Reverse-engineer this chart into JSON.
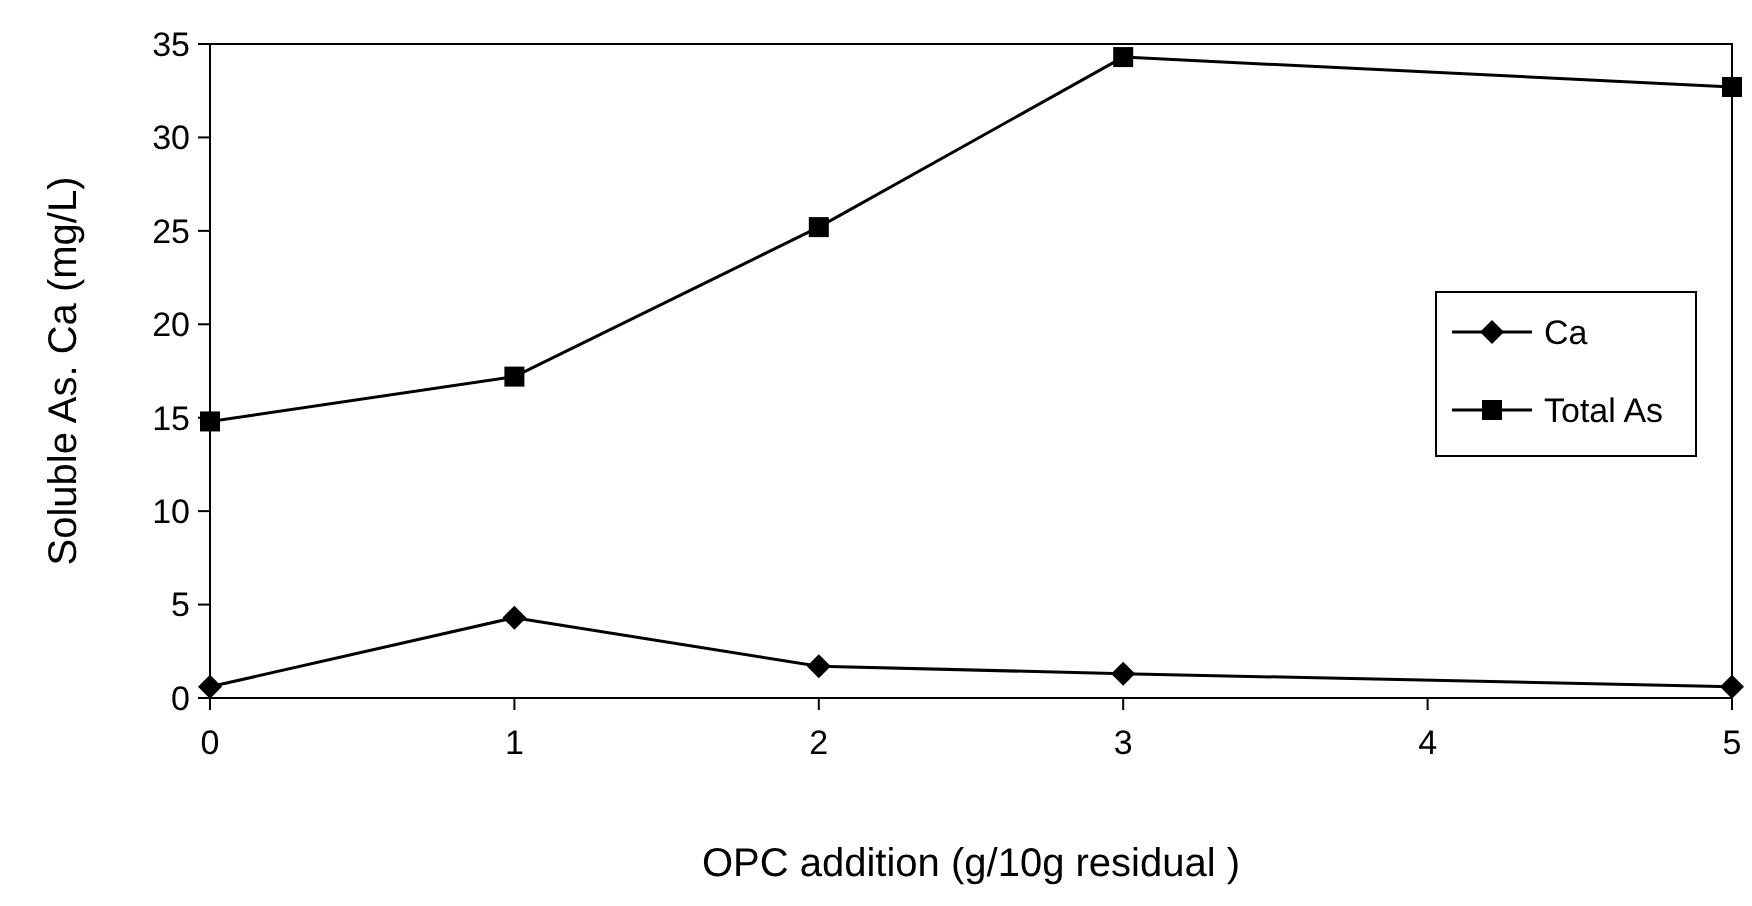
{
  "chart_data": {
    "type": "line",
    "xlabel": "OPC addition (g/10g residual )",
    "ylabel": "Soluble As. Ca (mg/L)",
    "x": [
      0,
      1,
      2,
      3,
      5
    ],
    "xlim": [
      0,
      5
    ],
    "xticks": [
      0,
      1,
      2,
      3,
      4,
      5
    ],
    "ylim": [
      0,
      35
    ],
    "yticks": [
      0,
      5,
      10,
      15,
      20,
      25,
      30,
      35
    ],
    "grid": false,
    "legend": "right",
    "series": [
      {
        "name": "Ca",
        "color": "#000000",
        "marker": "diamond",
        "values": [
          0.6,
          4.3,
          1.7,
          1.3,
          0.6
        ]
      },
      {
        "name": "Total As",
        "color": "#000000",
        "marker": "square",
        "values": [
          14.8,
          17.2,
          25.2,
          34.3,
          32.7
        ]
      }
    ]
  }
}
